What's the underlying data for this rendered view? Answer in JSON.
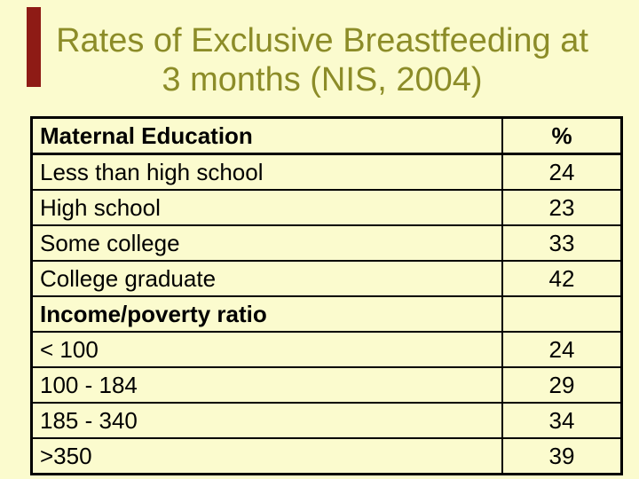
{
  "colors": {
    "background": "#FBFBCE",
    "title_text": "#8C8C28",
    "accent_bar": "#8E1B15",
    "table_border": "#000000",
    "table_text": "#000000"
  },
  "slide": {
    "title_line1": "Rates of Exclusive Breastfeeding at",
    "title_line2": "3 months (NIS, 2004)"
  },
  "table": {
    "rows": [
      {
        "label": "Maternal Education",
        "value": "%"
      },
      {
        "label": "Less than high school",
        "value": "24"
      },
      {
        "label": "High school",
        "value": "23"
      },
      {
        "label": "Some college",
        "value": "33"
      },
      {
        "label": "College graduate",
        "value": "42"
      },
      {
        "label": "Income/poverty ratio",
        "value": ""
      },
      {
        "label": "< 100",
        "value": "24"
      },
      {
        "label": "100 - 184",
        "value": "29"
      },
      {
        "label": "185 - 340",
        "value": "34"
      },
      {
        "label": ">350",
        "value": "39"
      }
    ]
  }
}
